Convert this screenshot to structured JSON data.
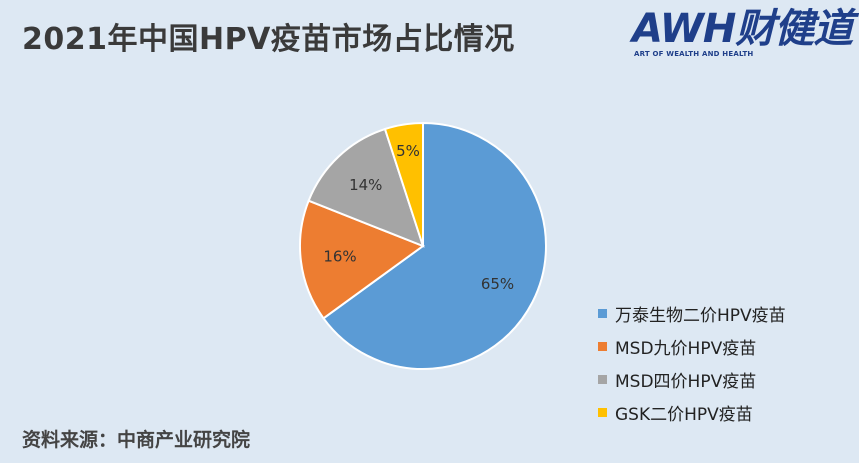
{
  "title": "2021年中国HPV疫苗市场占比情况",
  "logo": {
    "main_text": "AWH财健道",
    "sub_text": "ART OF WEALTH AND HEALTH"
  },
  "source": "资料来源：中商产业研究院",
  "chart_data": {
    "type": "pie",
    "title": "2021年中国HPV疫苗市场占比情况",
    "unit": "%",
    "slices": [
      {
        "name": "万泰生物二价HPV疫苗",
        "value": 65,
        "label": "65%",
        "color": "#5b9bd5"
      },
      {
        "name": "MSD九价HPV疫苗",
        "value": 16,
        "label": "16%",
        "color": "#ed7d31"
      },
      {
        "name": "MSD四价HPV疫苗",
        "value": 14,
        "label": "14%",
        "color": "#a5a5a5"
      },
      {
        "name": "GSK二价HPV疫苗",
        "value": 5,
        "label": "5%",
        "color": "#ffc000"
      }
    ],
    "legend_position": "right"
  }
}
